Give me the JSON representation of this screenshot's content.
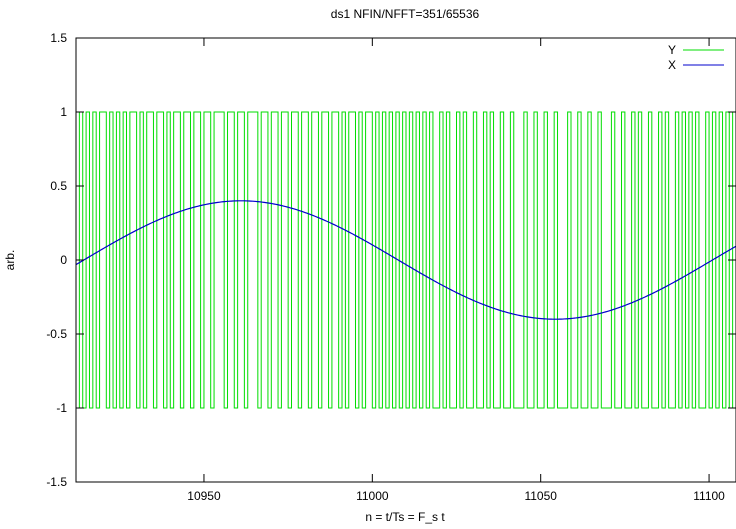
{
  "chart_data": {
    "type": "line",
    "title": "ds1  NFIN/NFFT=351/65536",
    "xlabel": "n = t/Ts = F_s t",
    "ylabel": "arb.",
    "xlim": [
      10912,
      11108
    ],
    "ylim": [
      -1.5,
      1.5
    ],
    "xticks": [
      10950,
      11000,
      11050,
      11100
    ],
    "xtick_labels": [
      "10950",
      "11000",
      "11050",
      "11100"
    ],
    "yticks": [
      -1.5,
      -1,
      -0.5,
      0,
      0.5,
      1,
      1.5
    ],
    "ytick_labels": [
      "-1.5",
      "-1",
      "-0.5",
      "0",
      "0.5",
      "1",
      "1.5"
    ],
    "grid": false,
    "legend_position": "top-right",
    "series": [
      {
        "name": "Y",
        "color": "#00dd00",
        "kind": "step",
        "levels": [
          -1,
          1
        ],
        "description_values": "bitstream toggling between -1 and 1 each sample, density following X",
        "x_start": 10912,
        "x_end": 11108
      },
      {
        "name": "X",
        "color": "#0000cc",
        "kind": "sine",
        "amplitude": 0.4,
        "period": 186.7,
        "peak_x": 10961,
        "trough_x": 11054.5
      }
    ]
  }
}
